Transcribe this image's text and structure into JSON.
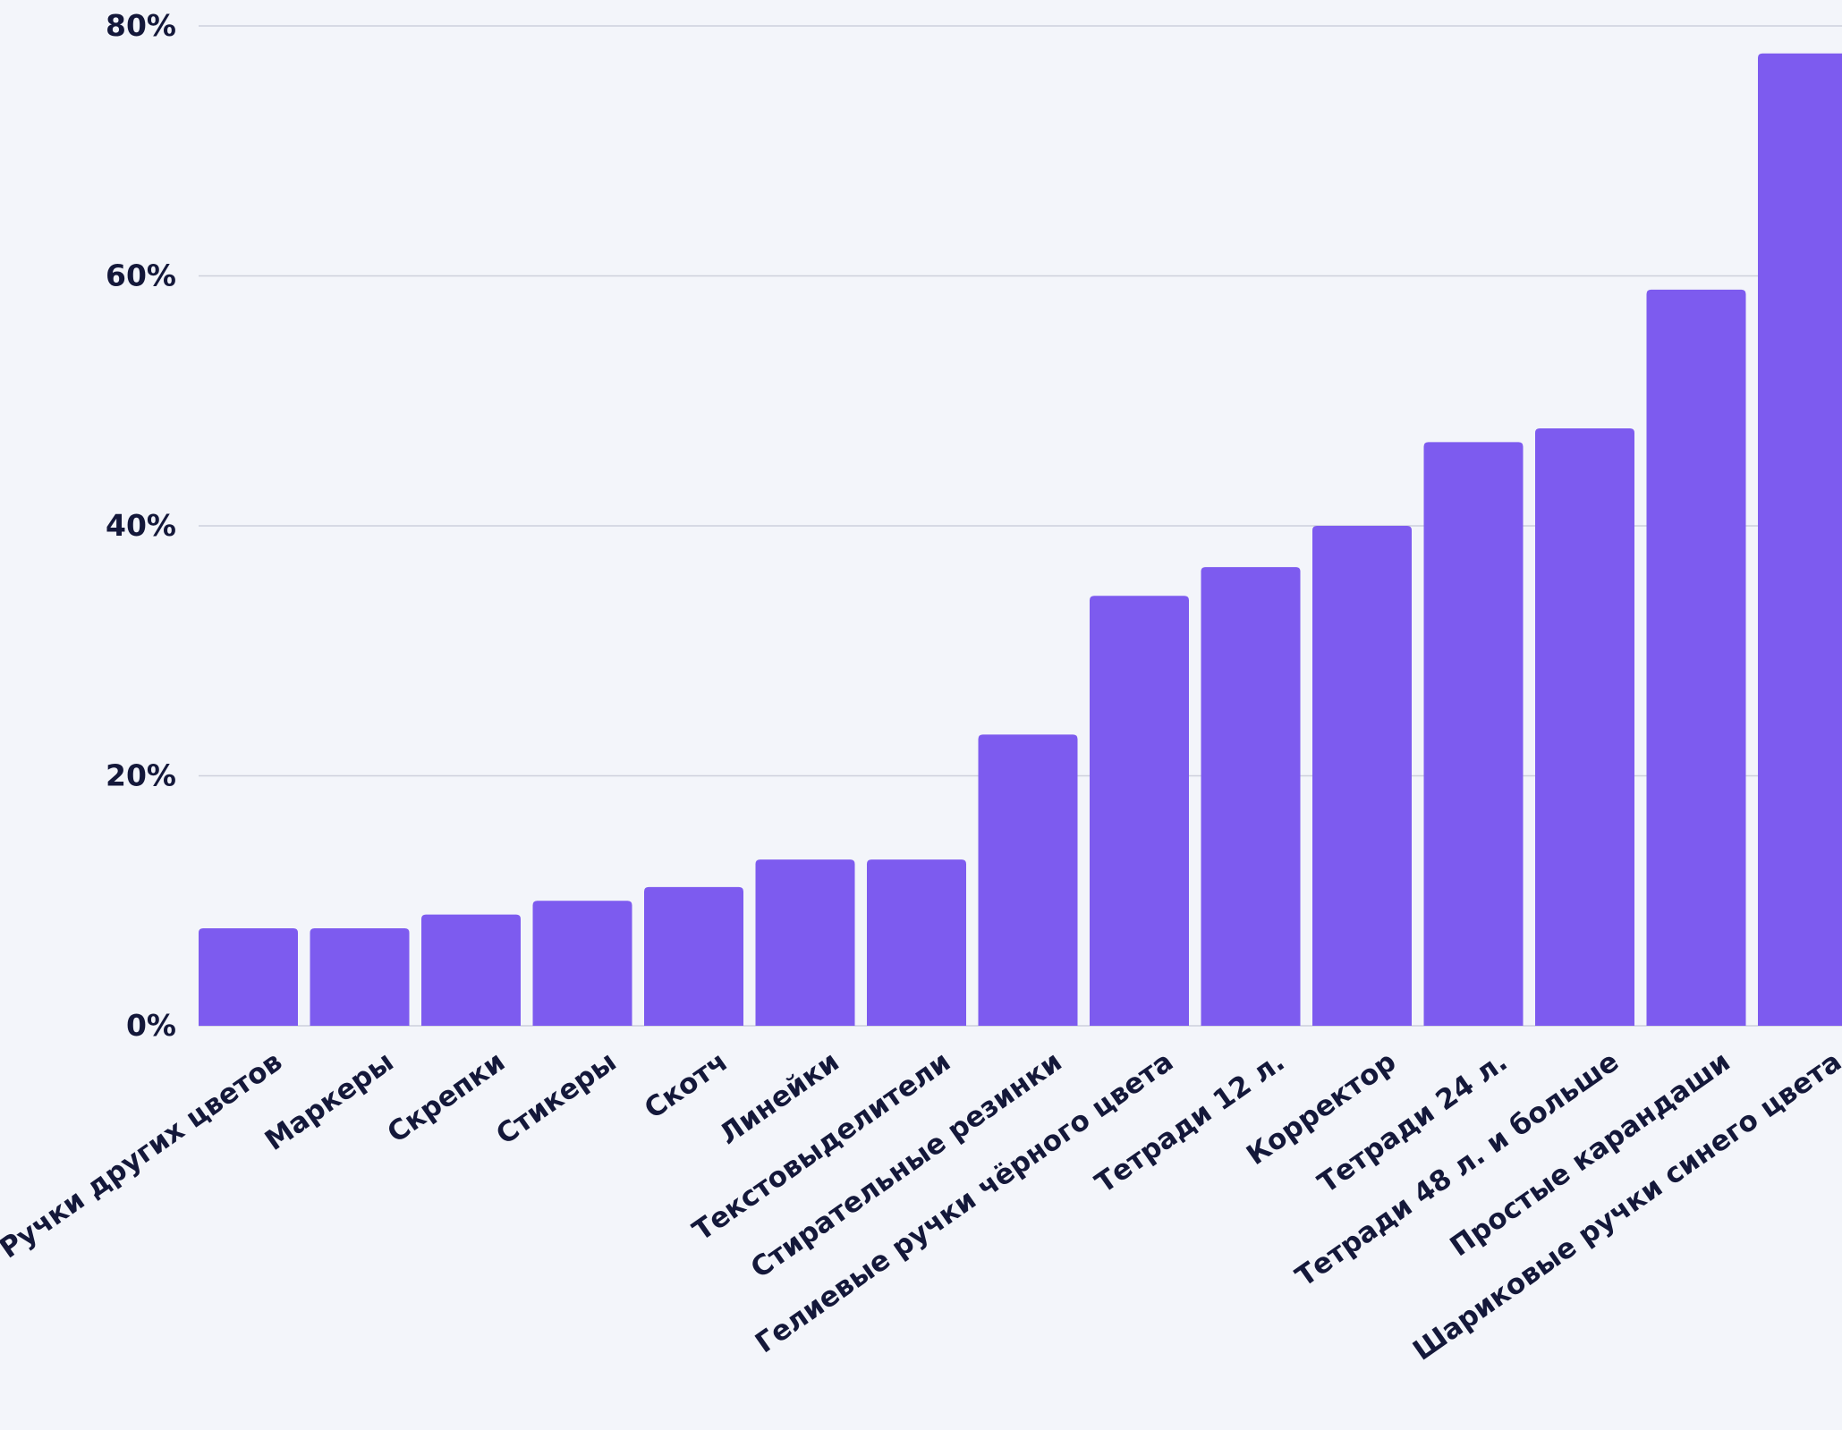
{
  "chart_data": {
    "type": "bar",
    "categories": [
      "Ручки других цветов",
      "Маркеры",
      "Скрепки",
      "Стикеры",
      "Скотч",
      "Линейки",
      "Текстовыделители",
      "Стирательные резинки",
      "Гелиевые ручки чёрного цвета",
      "Тетради 12 л.",
      "Корректор",
      "Тетради 24 л.",
      "Тетради 48 л. и больше",
      "Простые карандаши",
      "Шариковые ручки синего цвета"
    ],
    "values": [
      7.8,
      7.8,
      8.9,
      10.0,
      11.1,
      13.3,
      13.3,
      23.3,
      34.4,
      36.7,
      40.0,
      46.7,
      47.8,
      58.9,
      77.8
    ],
    "ylim": [
      0,
      80
    ],
    "yticks": [
      0,
      20,
      40,
      60,
      80
    ],
    "ytick_labels": [
      "0%",
      "20%",
      "40%",
      "60%",
      "80%"
    ],
    "title": "",
    "xlabel": "",
    "ylabel": "",
    "grid": "horizontal",
    "bar_color": "#7d5bef",
    "background": "#f3f5fa",
    "text_color": "#14183a",
    "grid_color": "#cdd0dc"
  }
}
